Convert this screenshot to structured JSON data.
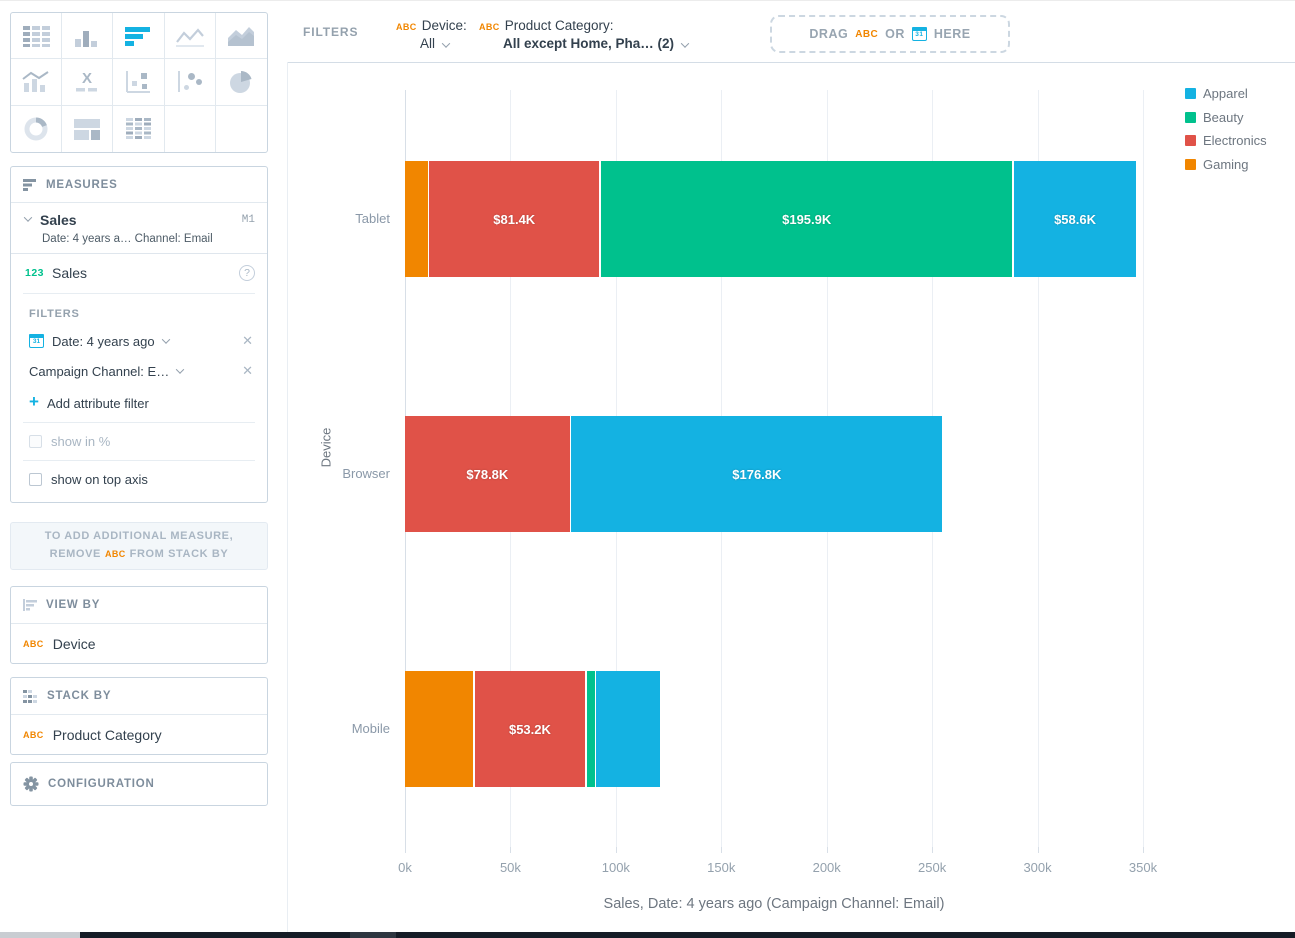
{
  "chart_picker": {
    "active": "bar-chart",
    "types": [
      "table",
      "column-chart",
      "bar-chart",
      "line-chart",
      "area-chart",
      "combo-chart",
      "headline",
      "scatter-plot",
      "bubble-chart",
      "pie-chart",
      "donut-chart",
      "treemap",
      "heatmap"
    ]
  },
  "filters_bar": {
    "label": "FILTERS",
    "filters": [
      {
        "tag": "ABC",
        "title": "Device:",
        "value": "All"
      },
      {
        "tag": "ABC",
        "title": "Product Category:",
        "value": "All except Home, Pha… (2)"
      }
    ],
    "dropzone": {
      "pre": "DRAG",
      "tag": "ABC",
      "mid": "OR",
      "post": "HERE"
    }
  },
  "sidebar": {
    "measures": {
      "header": "MEASURES",
      "measure": {
        "name": "Sales",
        "tag": "M1",
        "subtitle": "Date: 4 years a… Channel: Email"
      },
      "fact_row": {
        "prefix": "123",
        "label": "Sales"
      },
      "filters_label": "FILTERS",
      "date_filter": "Date: 4 years ago",
      "attribute_filter": "Campaign Channel: E…",
      "add_filter": "Add attribute filter",
      "show_in_percent": "show in %",
      "show_on_top_axis": "show on top axis"
    },
    "hint": {
      "line1": "TO ADD ADDITIONAL MEASURE,",
      "line2_pre": "REMOVE",
      "line2_tag": "ABC",
      "line2_post": "FROM STACK BY"
    },
    "view_by": {
      "header": "VIEW BY",
      "item": {
        "tag": "ABC",
        "label": "Device"
      }
    },
    "stack_by": {
      "header": "STACK BY",
      "item": {
        "tag": "ABC",
        "label": "Product Category"
      }
    },
    "configuration": {
      "header": "CONFIGURATION"
    }
  },
  "chart_data": {
    "type": "bar",
    "stacked": true,
    "orientation": "horizontal",
    "categories": [
      "Tablet",
      "Browser",
      "Mobile"
    ],
    "series": [
      {
        "name": "Gaming",
        "color": "#F18600",
        "values_k": [
          11.5,
          0,
          33
        ]
      },
      {
        "name": "Electronics",
        "color": "#E05248",
        "values_k": [
          81.4,
          78.8,
          53.2
        ]
      },
      {
        "name": "Beauty",
        "color": "#00C18D",
        "values_k": [
          195.9,
          0,
          4.5
        ]
      },
      {
        "name": "Apparel",
        "color": "#14B2E2",
        "values_k": [
          58.6,
          176.8,
          31
        ]
      }
    ],
    "data_labels": [
      [
        "",
        "$81.4K",
        "$195.9K",
        "$58.6K"
      ],
      [
        "",
        "$78.8K",
        "",
        "$176.8K"
      ],
      [
        "",
        "$53.2K",
        "",
        ""
      ]
    ],
    "x_ticks": [
      "0k",
      "50k",
      "100k",
      "150k",
      "200k",
      "250k",
      "300k",
      "350k"
    ],
    "x_max_k": 350,
    "xlabel": "Sales, Date: 4 years ago (Campaign Channel: Email)",
    "ylabel": "Device",
    "legend": [
      {
        "label": "Apparel",
        "color": "#14B2E2"
      },
      {
        "label": "Beauty",
        "color": "#00C18D"
      },
      {
        "label": "Electronics",
        "color": "#E05248"
      },
      {
        "label": "Gaming",
        "color": "#F18600"
      }
    ],
    "legend_position": "top-right",
    "grid": true
  }
}
